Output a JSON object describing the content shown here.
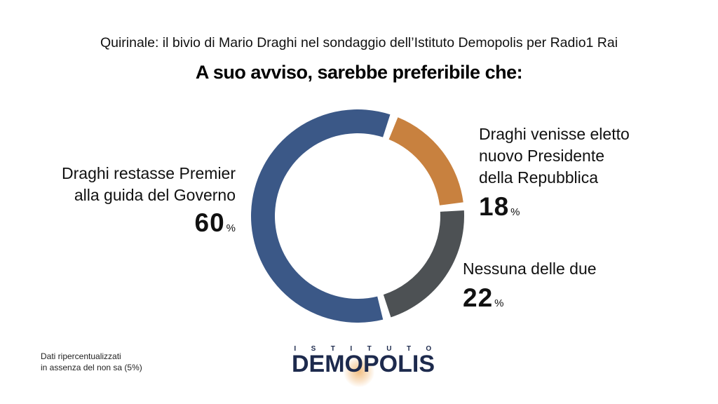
{
  "header": {
    "title": "Quirinale: il bivio di Mario Draghi nel sondaggio dell’Istituto Demopolis per Radio1 Rai",
    "subtitle": "A suo avviso, sarebbe preferibile che:"
  },
  "chart_data": {
    "type": "pie",
    "variant": "donut",
    "title": "A suo avviso, sarebbe preferibile che:",
    "slices": [
      {
        "label_lines": [
          "Draghi restasse Premier",
          "alla guida del Governo"
        ],
        "value": 60,
        "value_label": "60",
        "color": "#3b5887"
      },
      {
        "label_lines": [
          "Draghi venisse eletto",
          "nuovo Presidente",
          "della Repubblica"
        ],
        "value": 18,
        "value_label": "18",
        "color": "#c8813f"
      },
      {
        "label_lines": [
          "Nessuna delle due"
        ],
        "value": 22,
        "value_label": "22",
        "color": "#4d5154"
      }
    ],
    "percent_sign": "%"
  },
  "footnote": {
    "line1": "Dati ripercentualizzati",
    "line2": "in assenza del non sa (5%)"
  },
  "logo": {
    "top": "ISTITUTO",
    "main": "DEMOPOLIS",
    "colors": {
      "text": "#1d2a4d",
      "glow": "#f0b46e"
    }
  }
}
